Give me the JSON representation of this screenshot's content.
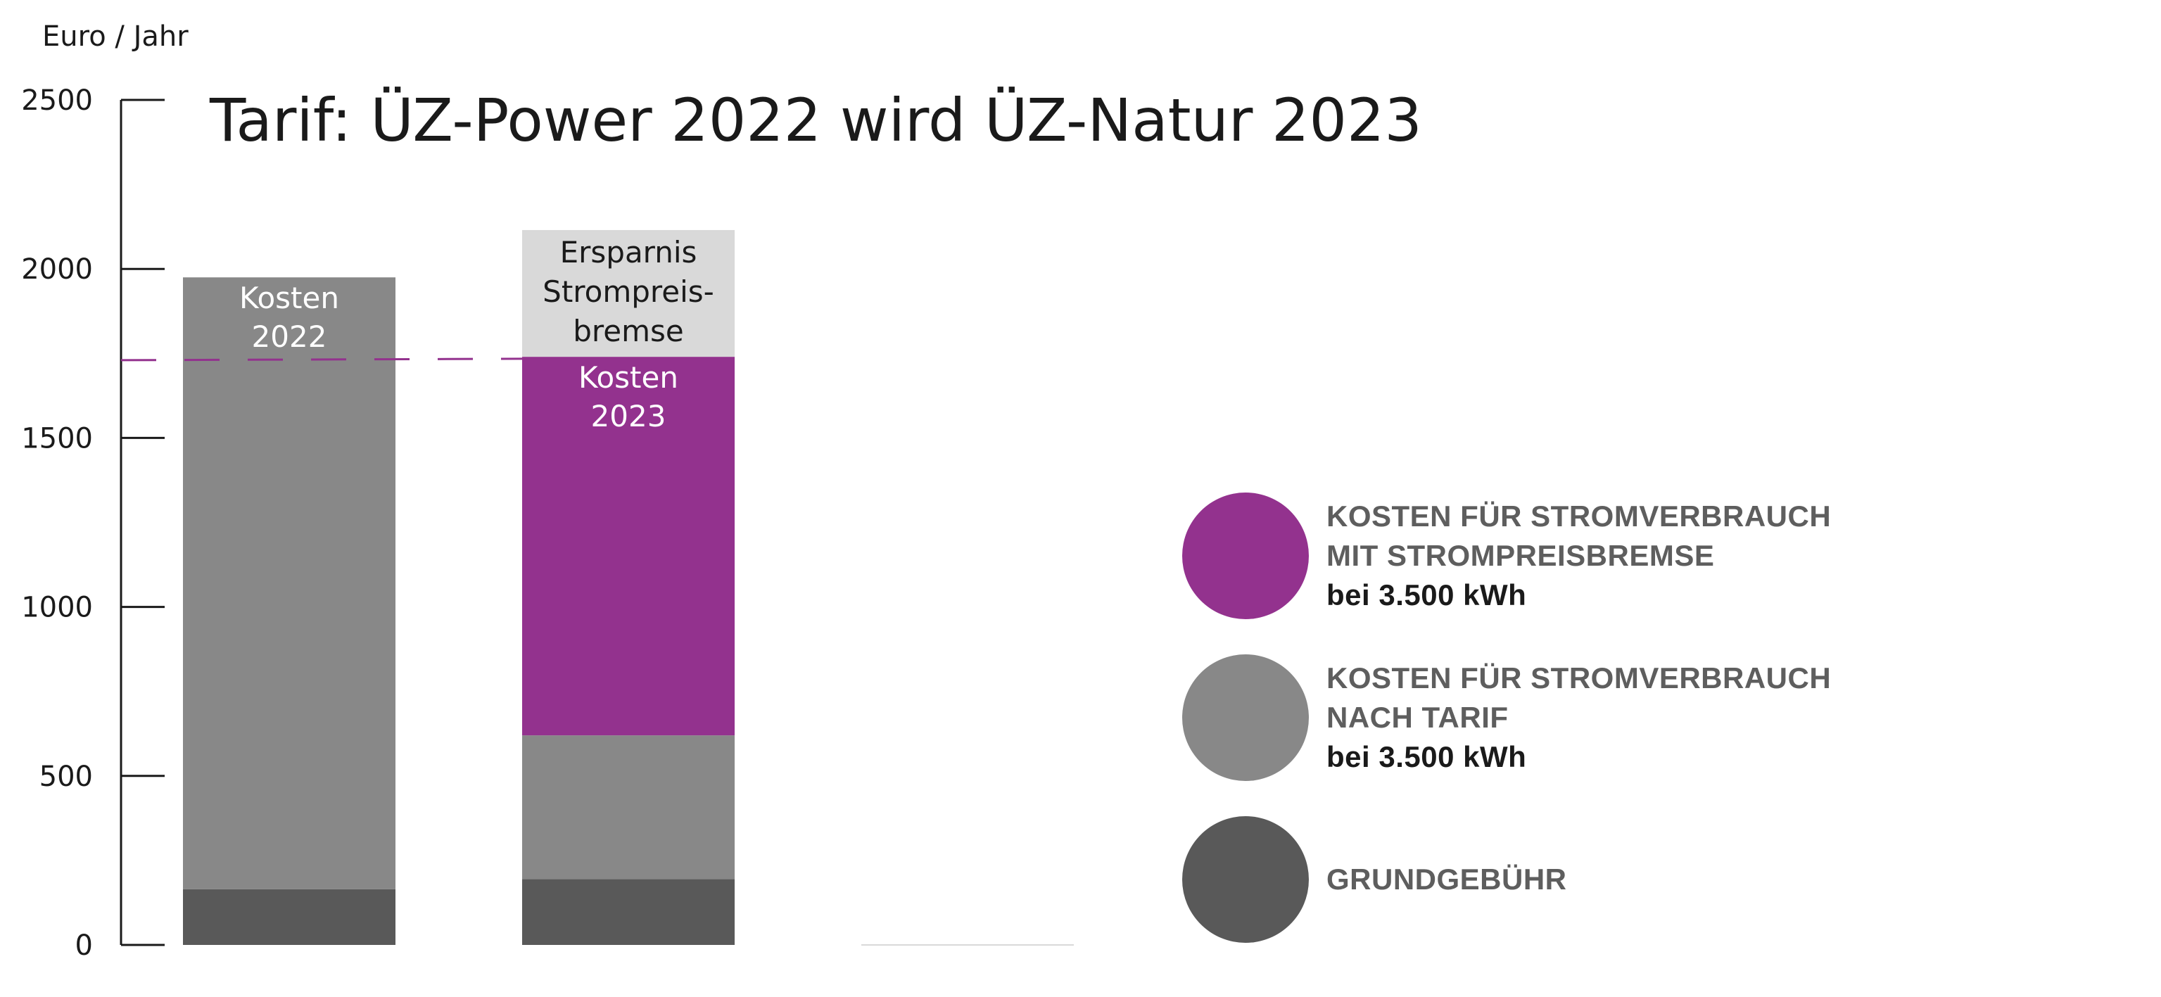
{
  "chart_data": {
    "type": "bar",
    "stacked": true,
    "title": "Tarif: ÜZ-Power 2022 wird ÜZ-Natur 2023",
    "ylabel": "Euro / Jahr",
    "ylim": [
      0,
      2500
    ],
    "yticks": [
      0,
      500,
      1000,
      1500,
      2000,
      2500
    ],
    "grid": false,
    "legend_position": "right",
    "categories": [
      "Kosten 2022",
      "Kosten 2023",
      ""
    ],
    "bars": [
      {
        "label_lines": [
          "Kosten",
          "2022"
        ],
        "segments": [
          {
            "key": "grundgebuehr",
            "value": 165
          },
          {
            "key": "tarif",
            "value": 1810
          }
        ]
      },
      {
        "label_lines": [
          "Kosten",
          "2023"
        ],
        "segments": [
          {
            "key": "grundgebuehr",
            "value": 195
          },
          {
            "key": "tarif",
            "value": 425
          },
          {
            "key": "bremse",
            "value": 1120
          },
          {
            "key": "ersparnis",
            "value": 375,
            "label_lines": [
              "Ersparnis",
              "Strompreis-",
              "bremse"
            ]
          }
        ]
      },
      {
        "label_lines": [],
        "segments": []
      }
    ],
    "reference_line": {
      "value": 1730,
      "color": "#93328e"
    },
    "colors": {
      "grundgebuehr": "#595959",
      "tarif": "#888888",
      "bremse": "#93328e",
      "ersparnis": "#d9d9d9"
    }
  },
  "legend": [
    {
      "color": "#93328e",
      "lines": [
        "KOSTEN FÜR STROMVERBRAUCH",
        "MIT STROMPREISBREMSE"
      ],
      "sub": "bei 3.500 kWh"
    },
    {
      "color": "#888888",
      "lines": [
        "KOSTEN FÜR STROMVERBRAUCH",
        "NACH TARIF"
      ],
      "sub": "bei 3.500 kWh"
    },
    {
      "color": "#595959",
      "lines": [
        "GRUNDGEBÜHR"
      ],
      "sub": ""
    }
  ]
}
